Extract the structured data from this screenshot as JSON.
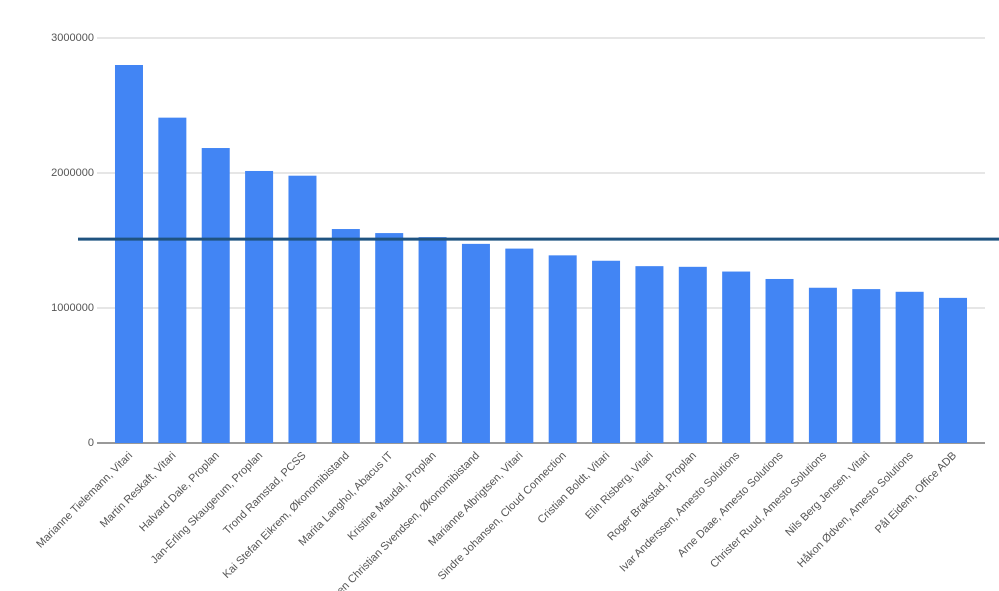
{
  "chart_data": {
    "type": "bar",
    "categories": [
      "Marianne Tielemann, Vitari",
      "Martin Reskaft, Vitari",
      "Halvard Dale, Proplan",
      "Jan-Erling Skaugerum, Proplan",
      "Trond Ramstad, PCSS",
      "Kai Stefan Eikrem, Økonomibistand",
      "Marita Langhol, Abacus IT",
      "Kristine Maudal, Proplan",
      "Sven Christian Svendsen, Økonomibistand",
      "Marianne Albrigtsen, Vitari",
      "Sindre Johansen, Cloud Connection",
      "Cristian Boldt, Vitari",
      "Elin Risberg, Vitari",
      "Roger Brakstad, Proplan",
      "Ivar Anderssen, Amesto Solutions",
      "Arne Daae, Amesto Solutions",
      "Christer Ruud, Amesto Solutions",
      "Nils Berg Jensen, Vitari",
      "Håkon Ødven, Amesto Solutions",
      "Pål Eidem, Office ADB"
    ],
    "values": [
      2800000,
      2410000,
      2185000,
      2015000,
      1980000,
      1585000,
      1555000,
      1525000,
      1475000,
      1440000,
      1390000,
      1350000,
      1310000,
      1305000,
      1270000,
      1215000,
      1150000,
      1140000,
      1120000,
      1075000
    ],
    "color": "#4285f4",
    "reference_line": 1510000,
    "reference_line_color": "#1f5380",
    "ylim": [
      0,
      3000000
    ],
    "yticks": [
      0,
      1000000,
      2000000,
      3000000
    ],
    "grid": true
  }
}
